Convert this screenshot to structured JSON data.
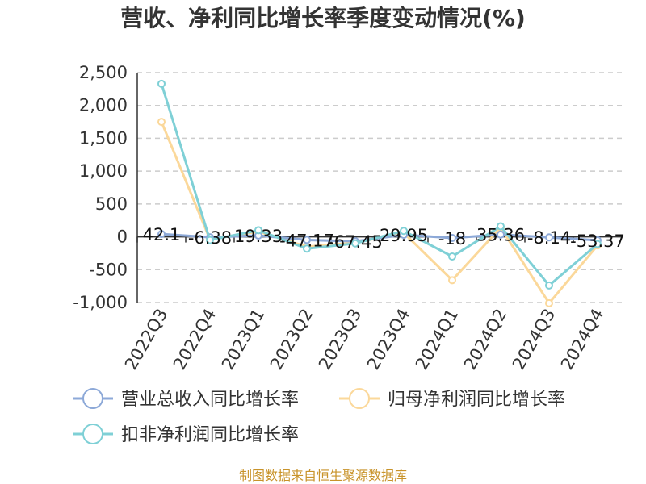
{
  "chart_data": {
    "type": "line",
    "title": "营收、净利同比增长率季度变动情况(%)",
    "categories": [
      "2022Q3",
      "2022Q4",
      "2023Q1",
      "2023Q2",
      "2023Q3",
      "2023Q4",
      "2024Q1",
      "2024Q2",
      "2024Q3",
      "2024Q4"
    ],
    "ylim": [
      -1000,
      2500
    ],
    "yticks": [
      2500,
      2000,
      1500,
      1000,
      500,
      0,
      -500,
      -1000
    ],
    "ytick_labels": [
      "2,500",
      "2,000",
      "1,500",
      "1,000",
      "500",
      "0",
      "-500",
      "-1,000"
    ],
    "grid": true,
    "legend_position": "bottom",
    "series": [
      {
        "name": "营业总收入同比增长率",
        "color": "#8da9d8",
        "values": [
          42.1,
          -6.38,
          19.33,
          -47.17,
          -67.45,
          29.95,
          -18,
          35.36,
          -8.14,
          -53.37
        ],
        "labels": [
          "42.1",
          "-6.38",
          "19.33",
          "-47.17",
          "-67.45",
          "29.95",
          "-18",
          "35.36",
          "-8.14",
          "-53.37"
        ]
      },
      {
        "name": "归母净利润同比增长率",
        "color": "#fbd89a",
        "values": [
          1750,
          -40,
          80,
          -150,
          -90,
          60,
          -660,
          140,
          -1010,
          -130
        ]
      },
      {
        "name": "扣非净利润同比增长率",
        "color": "#7fd0d6",
        "values": [
          2330,
          -50,
          100,
          -180,
          -100,
          90,
          -300,
          160,
          -740,
          -110
        ]
      }
    ],
    "source": "制图数据来自恒生聚源数据库"
  }
}
